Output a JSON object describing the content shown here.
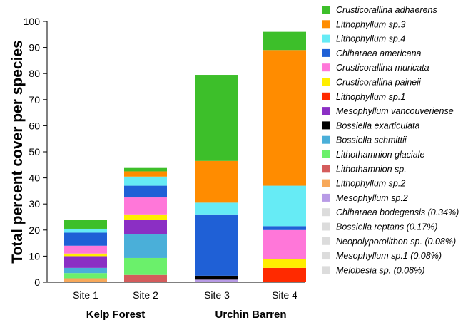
{
  "chart_data": {
    "type": "bar",
    "stacked": true,
    "ylabel": "Total percent cover per species",
    "ylim": [
      0,
      100
    ],
    "yticks": [
      0,
      10,
      20,
      30,
      40,
      50,
      60,
      70,
      80,
      90,
      100
    ],
    "grid": false,
    "legend_position": "right",
    "categories": [
      "Site 1",
      "Site 2",
      "Site 3",
      "Site 4"
    ],
    "groups": [
      {
        "label": "Kelp Forest",
        "categories": [
          "Site 1",
          "Site 2"
        ]
      },
      {
        "label": "Urchin Barren",
        "categories": [
          "Site 3",
          "Site 4"
        ]
      }
    ],
    "series": [
      {
        "name": "Mesophyllum sp.2",
        "color": "#B89BE6",
        "values": [
          0,
          0,
          1.0,
          0
        ]
      },
      {
        "name": "Lithophyllum sp.2",
        "color": "#F7A85A",
        "values": [
          1.5,
          0,
          0,
          0
        ]
      },
      {
        "name": "Lithothamnion sp.",
        "color": "#D45C5C",
        "values": [
          0,
          2.8,
          0,
          0
        ]
      },
      {
        "name": "Lithothamnion glaciale",
        "color": "#6BF06B",
        "values": [
          2.0,
          6.5,
          0,
          0
        ]
      },
      {
        "name": "Bossiella schmittii",
        "color": "#4AAFD9",
        "values": [
          2.0,
          9.0,
          0,
          0
        ]
      },
      {
        "name": "Bossiella exarticulata",
        "color": "#000000",
        "values": [
          0,
          0,
          1.5,
          0
        ]
      },
      {
        "name": "Mesophyllum vancouveriense",
        "color": "#8B2FC4",
        "values": [
          4.5,
          5.7,
          0,
          0
        ]
      },
      {
        "name": "Lithophyllum sp.1",
        "color": "#FF2A00",
        "values": [
          0,
          0,
          0,
          5.5
        ]
      },
      {
        "name": "Crusticorallina paineii",
        "color": "#FFEE00",
        "values": [
          1.0,
          2.0,
          0,
          3.5
        ]
      },
      {
        "name": "Crusticorallina muricata",
        "color": "#FF77D9",
        "values": [
          3.0,
          6.5,
          0,
          11.0
        ]
      },
      {
        "name": "Chiharaea americana",
        "color": "#1F60D6",
        "values": [
          5.0,
          4.5,
          23.5,
          1.5
        ]
      },
      {
        "name": "Lithophyllum sp.4",
        "color": "#66EBF5",
        "values": [
          1.5,
          3.5,
          4.5,
          15.5
        ]
      },
      {
        "name": "Lithophyllum sp.3",
        "color": "#FF8C00",
        "values": [
          0,
          2.0,
          16.0,
          52.0
        ]
      },
      {
        "name": "Crusticorallina adhaerens",
        "color": "#3DBF2A",
        "values": [
          3.5,
          1.3,
          33.0,
          7.0
        ]
      }
    ],
    "legend": [
      {
        "label": "Crusticorallina adhaerens",
        "color": "#3DBF2A",
        "italic": true
      },
      {
        "label": "Lithophyllum sp.3",
        "color": "#FF8C00",
        "italic": true
      },
      {
        "label": "Lithophyllum sp.4",
        "color": "#66EBF5",
        "italic": true
      },
      {
        "label": "Chiharaea americana",
        "color": "#1F60D6",
        "italic": true
      },
      {
        "label": "Crusticorallina muricata",
        "color": "#FF77D9",
        "italic": true
      },
      {
        "label": "Crusticorallina paineii",
        "color": "#FFEE00",
        "italic": true
      },
      {
        "label": "Lithophyllum sp.1",
        "color": "#FF2A00",
        "italic": true
      },
      {
        "label": "Mesophyllum vancouveriense",
        "color": "#8B2FC4",
        "italic": true
      },
      {
        "label": "Bossiella exarticulata",
        "color": "#000000",
        "italic": true
      },
      {
        "label": "Bossiella schmittii",
        "color": "#4AAFD9",
        "italic": true
      },
      {
        "label": "Lithothamnion glaciale",
        "color": "#6BF06B",
        "italic": true
      },
      {
        "label": "Lithothamnion sp.",
        "color": "#D45C5C",
        "italic": true
      },
      {
        "label": "Lithophyllum sp.2",
        "color": "#F7A85A",
        "italic": true
      },
      {
        "label": "Mesophyllum sp.2",
        "color": "#B89BE6",
        "italic": true
      },
      {
        "label": "Chiharaea bodegensis (0.34%)",
        "color": "#DCDCDC",
        "italic": true
      },
      {
        "label": "Bossiella reptans (0.17%)",
        "color": "#DCDCDC",
        "italic": true
      },
      {
        "label": "Neopolyporolithon sp. (0.08%)",
        "color": "#DCDCDC",
        "italic": true
      },
      {
        "label": "Mesophyllum sp.1 (0.08%)",
        "color": "#DCDCDC",
        "italic": true
      },
      {
        "label": "Melobesia sp. (0.08%)",
        "color": "#DCDCDC",
        "italic": true
      }
    ]
  }
}
